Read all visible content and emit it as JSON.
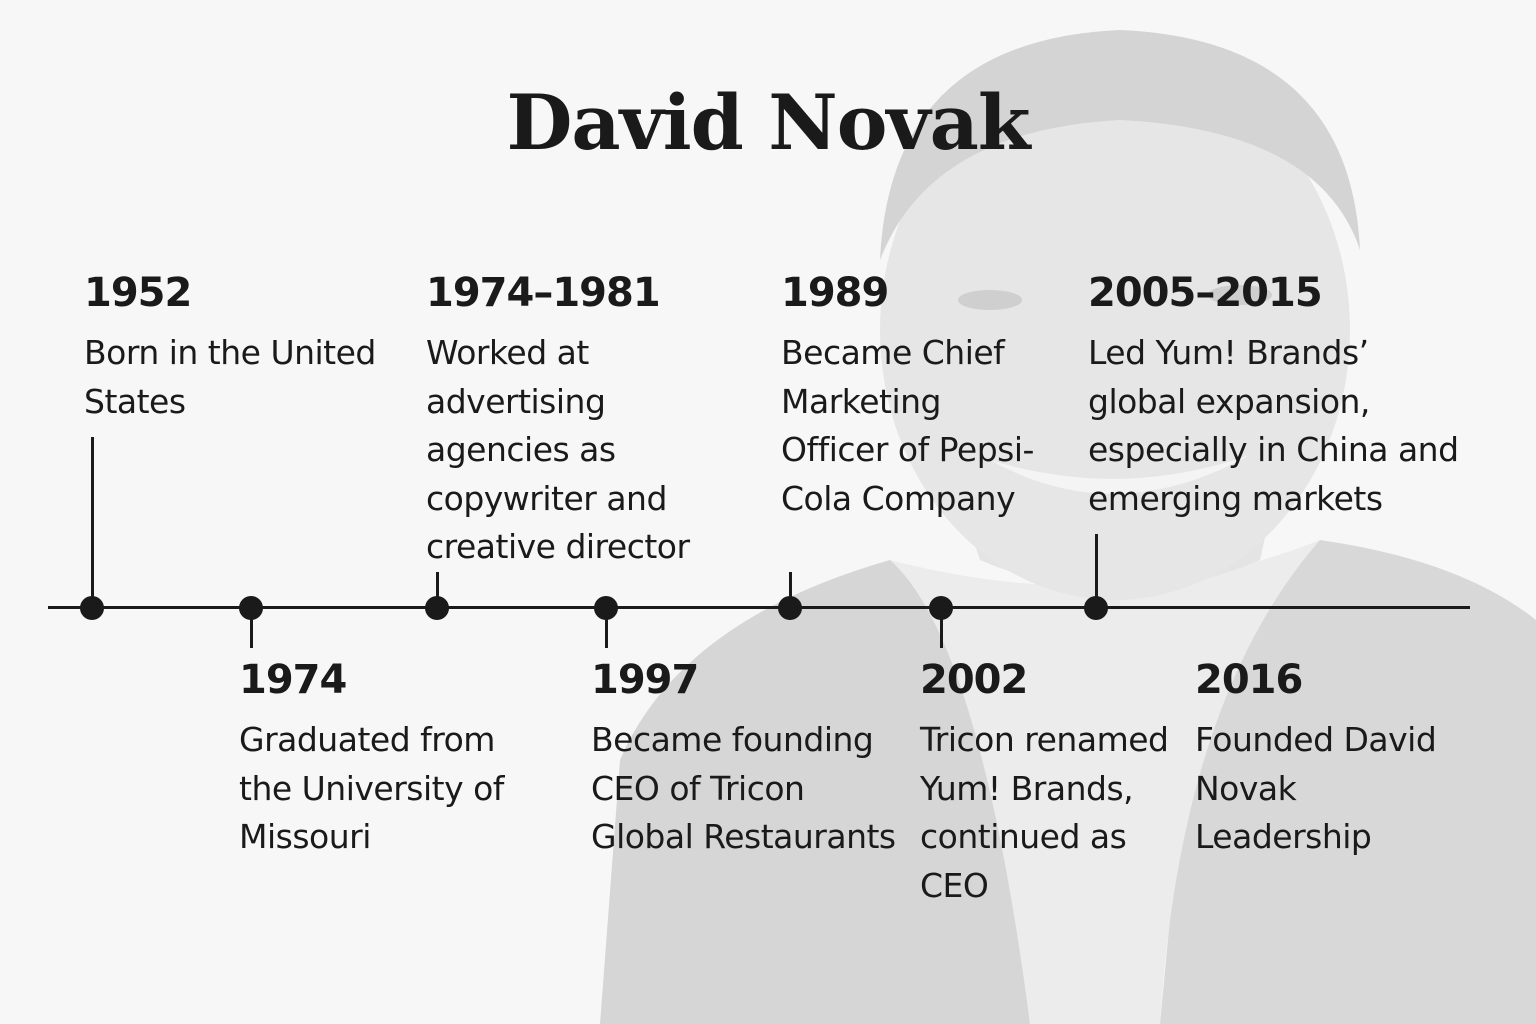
{
  "title": "David Novak",
  "events": [
    {
      "year": "1952",
      "text": "Born in the United States"
    },
    {
      "year": "1974",
      "text": "Graduated from the University of Missouri"
    },
    {
      "year": "1974–1981",
      "text": "Worked at advertising agencies as copywriter and creative director"
    },
    {
      "year": "1997",
      "text": "Became founding CEO of Tricon Global Restaurants"
    },
    {
      "year": "1989",
      "text": "Became Chief Marketing Officer of Pepsi-Cola Company"
    },
    {
      "year": "2002",
      "text": "Tricon renamed Yum! Brands, continued as CEO"
    },
    {
      "year": "2005–2015",
      "text": "Led Yum! Brands’ global expansion, especially in China and emerging markets"
    },
    {
      "year": "2016",
      "text": "Founded David Novak Leadership"
    }
  ],
  "colors": {
    "text": "#1a1a1a",
    "background": "#f7f7f7",
    "portrait": "#dadada"
  }
}
